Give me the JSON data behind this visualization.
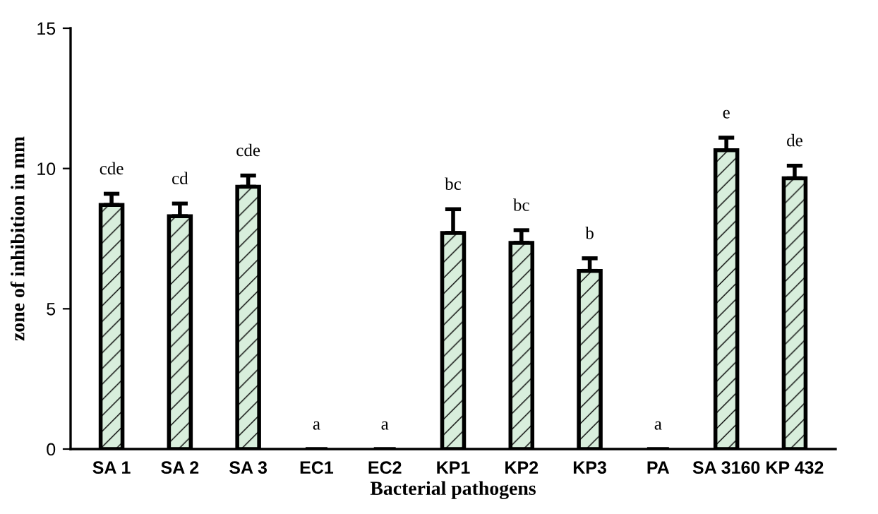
{
  "chart_data": {
    "type": "bar",
    "xlabel": "Bacterial pathogens",
    "ylabel": "zone of inhibition in mm",
    "categories": [
      "SA 1",
      "SA 2",
      "SA 3",
      "EC1",
      "EC2",
      "KP1",
      "KP2",
      "KP3",
      "PA",
      "SA 3160",
      "KP 432"
    ],
    "values": [
      8.7,
      8.3,
      9.35,
      0,
      0,
      7.7,
      7.35,
      6.35,
      0,
      10.65,
      9.65
    ],
    "errors": [
      [
        8.7,
        9.1
      ],
      [
        8.3,
        8.75
      ],
      [
        9.35,
        9.75
      ],
      null,
      null,
      [
        7.7,
        8.55
      ],
      [
        7.35,
        7.8
      ],
      [
        6.35,
        6.8
      ],
      null,
      [
        10.65,
        11.1
      ],
      [
        9.65,
        10.1
      ]
    ],
    "colors": [
      "#d8eedc",
      "#d8eedc",
      "#d8eedc",
      "#000000",
      "#000000",
      "#d8eedc",
      "#d8eedc",
      "#d8eedc",
      "#000000",
      "#d8eedc",
      "#d8eedc"
    ],
    "ylim": [
      0,
      15
    ],
    "yticks": [
      0,
      5,
      10,
      15
    ],
    "grid": false,
    "annotations": [
      {
        "text": "cde",
        "x": "SA 1",
        "y": 9.1
      },
      {
        "text": "cd",
        "x": "SA 2",
        "y": 8.75
      },
      {
        "text": "cde",
        "x": "SA 3",
        "y": 9.75
      },
      {
        "text": "a",
        "x": "EC1",
        "y": 0
      },
      {
        "text": "a",
        "x": "EC2",
        "y": 0
      },
      {
        "text": "bc",
        "x": "KP1",
        "y": 8.55
      },
      {
        "text": "bc",
        "x": "KP2",
        "y": 7.8
      },
      {
        "text": "b",
        "x": "KP3",
        "y": 6.8
      },
      {
        "text": "a",
        "x": "PA",
        "y": 0
      },
      {
        "text": "e",
        "x": "SA 3160",
        "y": 11.1
      },
      {
        "text": "de",
        "x": "KP 432",
        "y": 10.1
      }
    ]
  }
}
